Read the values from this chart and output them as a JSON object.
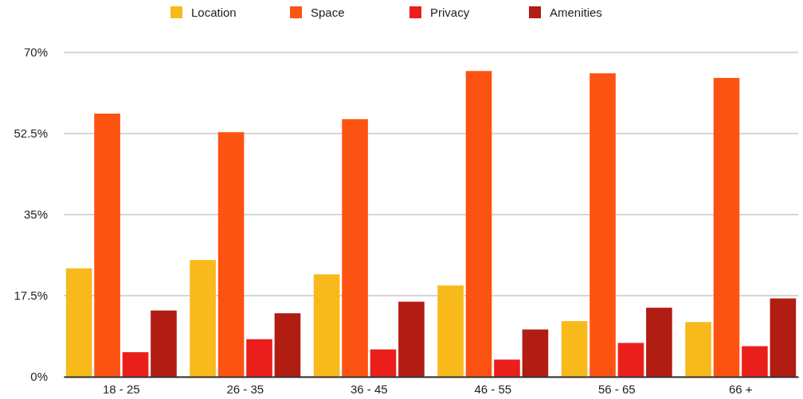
{
  "chart_data": {
    "type": "bar",
    "categories": [
      "18 - 25",
      "26 - 35",
      "36 - 45",
      "46 - 55",
      "56 - 65",
      "66 +"
    ],
    "series": [
      {
        "name": "Location",
        "color": "#f8b91a",
        "values": [
          23.4,
          25.2,
          22.1,
          19.7,
          12.0,
          11.8
        ]
      },
      {
        "name": "Space",
        "color": "#fd5312",
        "values": [
          56.8,
          52.8,
          55.6,
          66.0,
          65.5,
          64.5
        ]
      },
      {
        "name": "Privacy",
        "color": "#ea1f1c",
        "values": [
          5.3,
          8.1,
          5.9,
          3.7,
          7.3,
          6.6
        ]
      },
      {
        "name": "Amenities",
        "color": "#b11c13",
        "values": [
          14.3,
          13.7,
          16.2,
          10.2,
          14.9,
          16.9
        ]
      }
    ],
    "ylim": [
      0,
      70
    ],
    "yticks": [
      {
        "value": 0,
        "label": "0%"
      },
      {
        "value": 17.5,
        "label": "17.5%"
      },
      {
        "value": 35,
        "label": "35%"
      },
      {
        "value": 52.5,
        "label": "52.5%"
      },
      {
        "value": 70,
        "label": "70%"
      }
    ],
    "grid": "y",
    "legend": "top"
  }
}
